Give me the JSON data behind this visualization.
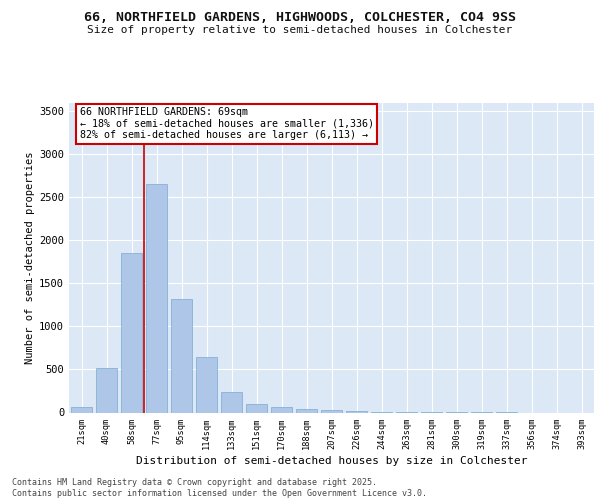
{
  "title1": "66, NORTHFIELD GARDENS, HIGHWOODS, COLCHESTER, CO4 9SS",
  "title2": "Size of property relative to semi-detached houses in Colchester",
  "xlabel": "Distribution of semi-detached houses by size in Colchester",
  "ylabel": "Number of semi-detached properties",
  "categories": [
    "21sqm",
    "40sqm",
    "58sqm",
    "77sqm",
    "95sqm",
    "114sqm",
    "133sqm",
    "151sqm",
    "170sqm",
    "188sqm",
    "207sqm",
    "226sqm",
    "244sqm",
    "263sqm",
    "281sqm",
    "300sqm",
    "319sqm",
    "337sqm",
    "356sqm",
    "374sqm",
    "393sqm"
  ],
  "values": [
    60,
    520,
    1850,
    2650,
    1320,
    640,
    240,
    100,
    60,
    40,
    30,
    20,
    10,
    5,
    3,
    2,
    1,
    1,
    0,
    0,
    0
  ],
  "bar_color": "#aec6e8",
  "bar_edge_color": "#7aaad0",
  "vline_x": 2.48,
  "vline_color": "#cc0000",
  "annotation_title": "66 NORTHFIELD GARDENS: 69sqm",
  "annotation_line2": "← 18% of semi-detached houses are smaller (1,336)",
  "annotation_line3": "82% of semi-detached houses are larger (6,113) →",
  "annotation_box_color": "#ffffff",
  "annotation_box_edge": "#cc0000",
  "ylim": [
    0,
    3600
  ],
  "yticks": [
    0,
    500,
    1000,
    1500,
    2000,
    2500,
    3000,
    3500
  ],
  "bg_color": "#dce8f5",
  "fig_bg_color": "#ffffff",
  "footer1": "Contains HM Land Registry data © Crown copyright and database right 2025.",
  "footer2": "Contains public sector information licensed under the Open Government Licence v3.0."
}
